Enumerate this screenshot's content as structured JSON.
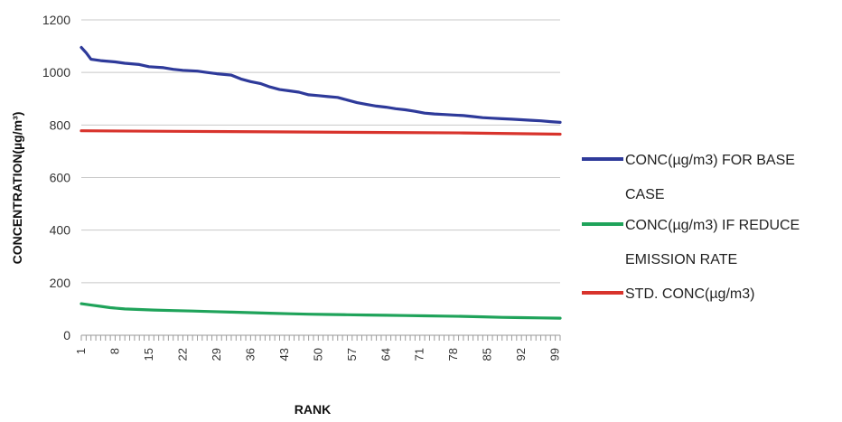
{
  "chart_data": {
    "type": "line",
    "title": "",
    "xlabel": "RANK",
    "ylabel": "CONCENTRATION(µg/m³)",
    "ylim": [
      0,
      1200
    ],
    "yticks": [
      "0",
      "200",
      "400",
      "600",
      "800",
      "1000",
      "1200"
    ],
    "x_range": [
      1,
      100
    ],
    "xtick_labels": [
      "1",
      "8",
      "15",
      "22",
      "29",
      "36",
      "43",
      "50",
      "57",
      "64",
      "71",
      "78",
      "85",
      "92",
      "99"
    ],
    "grid": true,
    "legend_position": "right",
    "series": [
      {
        "name": "CONC(µg/m3) FOR BASE CASE",
        "legend_lines": [
          "CONC(µg/m3) FOR BASE",
          "CASE"
        ],
        "color": "#2e3a9a",
        "points": [
          [
            1,
            1095
          ],
          [
            2,
            1075
          ],
          [
            3,
            1050
          ],
          [
            5,
            1045
          ],
          [
            8,
            1040
          ],
          [
            10,
            1035
          ],
          [
            13,
            1030
          ],
          [
            15,
            1022
          ],
          [
            18,
            1018
          ],
          [
            20,
            1012
          ],
          [
            22,
            1008
          ],
          [
            25,
            1005
          ],
          [
            27,
            1000
          ],
          [
            29,
            995
          ],
          [
            32,
            990
          ],
          [
            34,
            975
          ],
          [
            36,
            965
          ],
          [
            38,
            958
          ],
          [
            40,
            945
          ],
          [
            42,
            935
          ],
          [
            44,
            930
          ],
          [
            46,
            925
          ],
          [
            48,
            915
          ],
          [
            50,
            912
          ],
          [
            52,
            908
          ],
          [
            54,
            905
          ],
          [
            56,
            895
          ],
          [
            58,
            885
          ],
          [
            60,
            878
          ],
          [
            62,
            872
          ],
          [
            64,
            868
          ],
          [
            66,
            862
          ],
          [
            68,
            858
          ],
          [
            70,
            852
          ],
          [
            72,
            845
          ],
          [
            74,
            842
          ],
          [
            76,
            840
          ],
          [
            78,
            838
          ],
          [
            80,
            836
          ],
          [
            82,
            832
          ],
          [
            84,
            828
          ],
          [
            86,
            826
          ],
          [
            88,
            824
          ],
          [
            90,
            822
          ],
          [
            92,
            820
          ],
          [
            94,
            818
          ],
          [
            96,
            816
          ],
          [
            98,
            813
          ],
          [
            100,
            810
          ]
        ]
      },
      {
        "name": "CONC(µg/m3) IF REDUCE EMISSION RATE",
        "legend_lines": [
          "CONC(µg/m3) IF REDUCE",
          "EMISSION RATE"
        ],
        "color": "#1fa35a",
        "points": [
          [
            1,
            120
          ],
          [
            3,
            115
          ],
          [
            5,
            110
          ],
          [
            7,
            105
          ],
          [
            10,
            100
          ],
          [
            13,
            98
          ],
          [
            16,
            96
          ],
          [
            20,
            94
          ],
          [
            24,
            92
          ],
          [
            28,
            90
          ],
          [
            32,
            88
          ],
          [
            36,
            86
          ],
          [
            40,
            84
          ],
          [
            44,
            82
          ],
          [
            48,
            80
          ],
          [
            52,
            79
          ],
          [
            56,
            78
          ],
          [
            60,
            77
          ],
          [
            64,
            76
          ],
          [
            68,
            75
          ],
          [
            72,
            74
          ],
          [
            76,
            73
          ],
          [
            80,
            72
          ],
          [
            84,
            70
          ],
          [
            88,
            68
          ],
          [
            92,
            67
          ],
          [
            96,
            66
          ],
          [
            100,
            65
          ]
        ]
      },
      {
        "name": "STD. CONC(µg/m3)",
        "legend_lines": [
          "STD. CONC(µg/m3)"
        ],
        "color": "#d8332c",
        "points": [
          [
            1,
            778
          ],
          [
            20,
            776
          ],
          [
            40,
            774
          ],
          [
            60,
            772
          ],
          [
            80,
            770
          ],
          [
            100,
            765
          ]
        ]
      }
    ]
  }
}
